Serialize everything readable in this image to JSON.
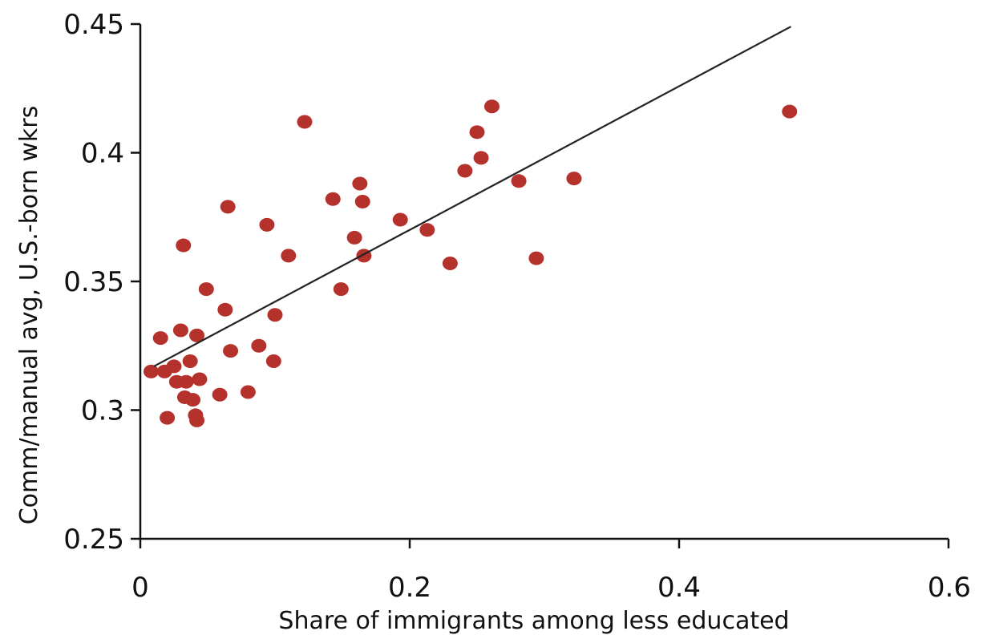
{
  "chart_data": {
    "type": "scatter",
    "xlabel": "Share of immigrants among less educated",
    "ylabel": "Comm/manual avg, U.S.-born wkrs",
    "xlim": [
      0,
      0.6
    ],
    "ylim": [
      0.25,
      0.45
    ],
    "xticks": [
      0,
      0.2,
      0.4,
      0.6
    ],
    "xtick_labels": [
      "0",
      "0.2",
      "0.4",
      "0.6"
    ],
    "yticks": [
      0.25,
      0.3,
      0.35,
      0.4,
      0.45
    ],
    "ytick_labels": [
      "0.25",
      "0.3",
      "0.35",
      "0.4",
      "0.45"
    ],
    "grid": false,
    "marker_color": "#b5312b",
    "trendline": {
      "x": [
        0.01,
        0.483
      ],
      "y": [
        0.317,
        0.449
      ],
      "color": "#222222"
    },
    "series": [
      {
        "points": [
          [
            0.008,
            0.315
          ],
          [
            0.015,
            0.328
          ],
          [
            0.018,
            0.315
          ],
          [
            0.02,
            0.297
          ],
          [
            0.025,
            0.317
          ],
          [
            0.027,
            0.311
          ],
          [
            0.03,
            0.331
          ],
          [
            0.032,
            0.364
          ],
          [
            0.033,
            0.305
          ],
          [
            0.034,
            0.311
          ],
          [
            0.037,
            0.319
          ],
          [
            0.039,
            0.304
          ],
          [
            0.041,
            0.298
          ],
          [
            0.042,
            0.329
          ],
          [
            0.042,
            0.296
          ],
          [
            0.044,
            0.312
          ],
          [
            0.049,
            0.347
          ],
          [
            0.059,
            0.306
          ],
          [
            0.063,
            0.339
          ],
          [
            0.065,
            0.379
          ],
          [
            0.067,
            0.323
          ],
          [
            0.08,
            0.307
          ],
          [
            0.088,
            0.325
          ],
          [
            0.094,
            0.372
          ],
          [
            0.099,
            0.319
          ],
          [
            0.1,
            0.337
          ],
          [
            0.11,
            0.36
          ],
          [
            0.122,
            0.412
          ],
          [
            0.143,
            0.382
          ],
          [
            0.149,
            0.347
          ],
          [
            0.159,
            0.367
          ],
          [
            0.163,
            0.388
          ],
          [
            0.165,
            0.381
          ],
          [
            0.166,
            0.36
          ],
          [
            0.193,
            0.374
          ],
          [
            0.213,
            0.37
          ],
          [
            0.23,
            0.357
          ],
          [
            0.241,
            0.393
          ],
          [
            0.25,
            0.408
          ],
          [
            0.253,
            0.398
          ],
          [
            0.261,
            0.418
          ],
          [
            0.281,
            0.389
          ],
          [
            0.294,
            0.359
          ],
          [
            0.322,
            0.39
          ],
          [
            0.482,
            0.416
          ]
        ]
      }
    ]
  }
}
